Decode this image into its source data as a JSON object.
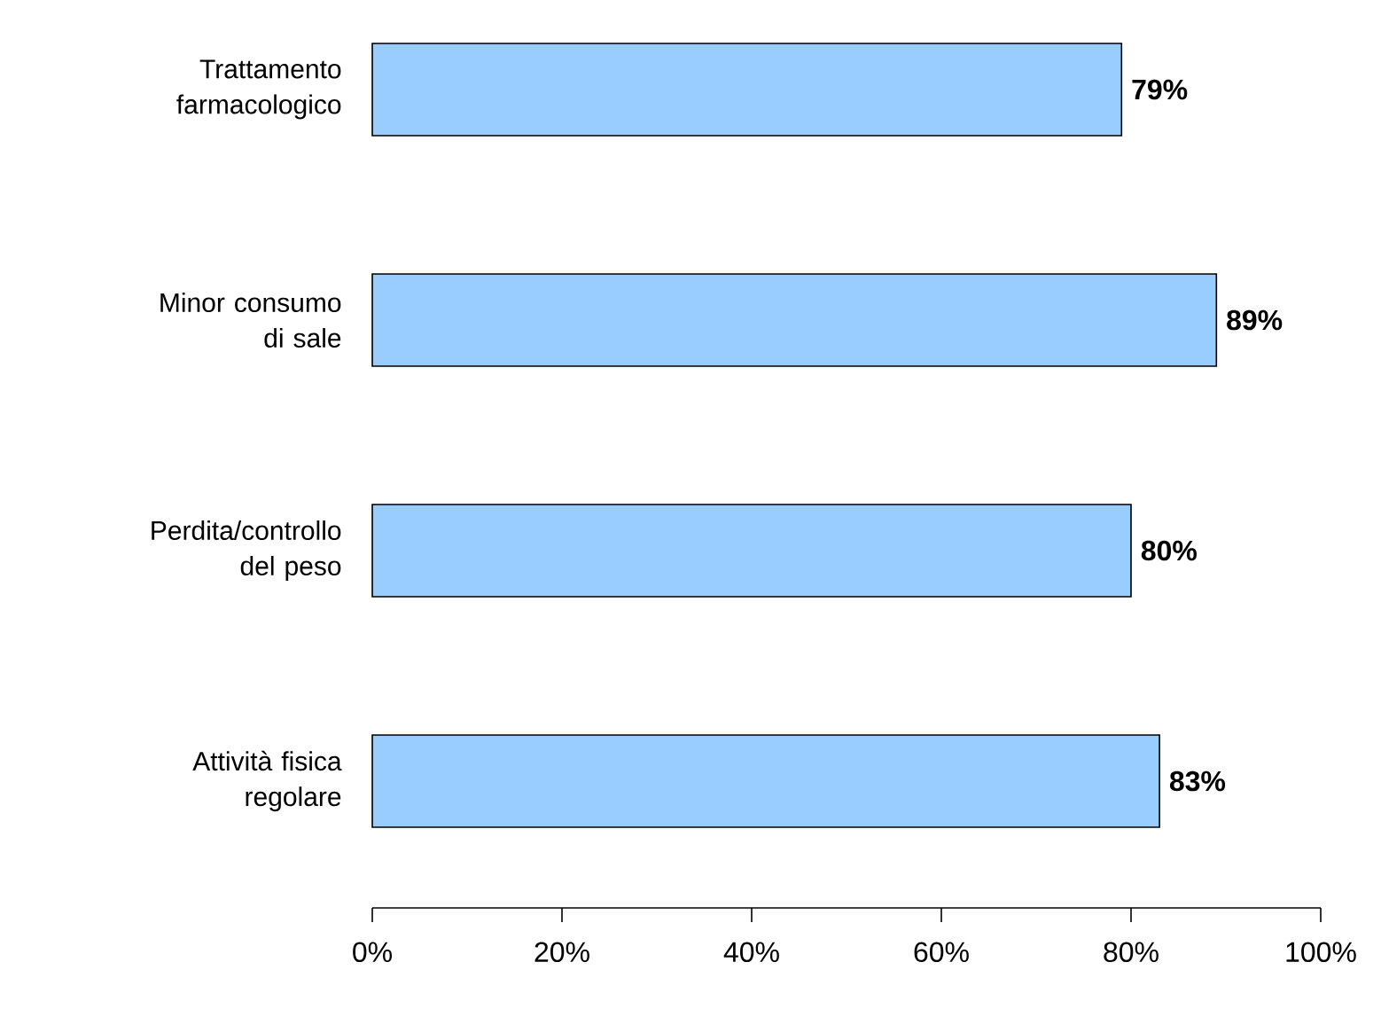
{
  "chart_data": {
    "type": "bar",
    "orientation": "horizontal",
    "categories": [
      "Trattamento farmacologico",
      "Minor consumo di sale",
      "Perdita/controllo del peso",
      "Attività fisica regolare"
    ],
    "values": [
      79,
      89,
      80,
      83
    ],
    "value_labels": [
      "79%",
      "89%",
      "80%",
      "83%"
    ],
    "color": "#99ccff",
    "xlim": [
      0,
      100
    ],
    "xticks": [
      {
        "value": 0,
        "label": "0%"
      },
      {
        "value": 20,
        "label": "20%"
      },
      {
        "value": 40,
        "label": "40%"
      },
      {
        "value": 60,
        "label": "60%"
      },
      {
        "value": 80,
        "label": "80%"
      },
      {
        "value": 100,
        "label": "100%"
      }
    ]
  }
}
